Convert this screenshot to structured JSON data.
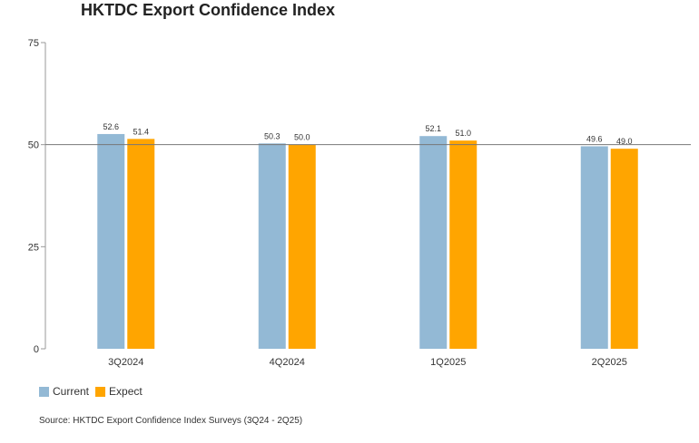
{
  "chart_data": {
    "type": "bar",
    "title": "HKTDC Export Confidence Index",
    "categories": [
      "3Q2024",
      "4Q2024",
      "1Q2025",
      "2Q2025"
    ],
    "series": [
      {
        "name": "Current",
        "values": [
          52.6,
          50.3,
          52.1,
          49.6
        ],
        "labels": [
          "52.6",
          "50.3",
          "52.1",
          "49.6"
        ],
        "color": "#93b9d5"
      },
      {
        "name": "Expect",
        "values": [
          51.4,
          50.0,
          51.0,
          49.0
        ],
        "labels": [
          "51.4",
          "50.0",
          "51.0",
          "49.0"
        ],
        "color": "#ffa500"
      }
    ],
    "ylim": [
      0,
      75
    ],
    "yticks": [
      0,
      25,
      50,
      75
    ],
    "reference_line": 50,
    "xlabel": "",
    "ylabel": "",
    "legend_position": "bottom-left",
    "grid": false
  },
  "source": "Source: HKTDC Export Confidence Index Surveys (3Q24 - 2Q25)"
}
